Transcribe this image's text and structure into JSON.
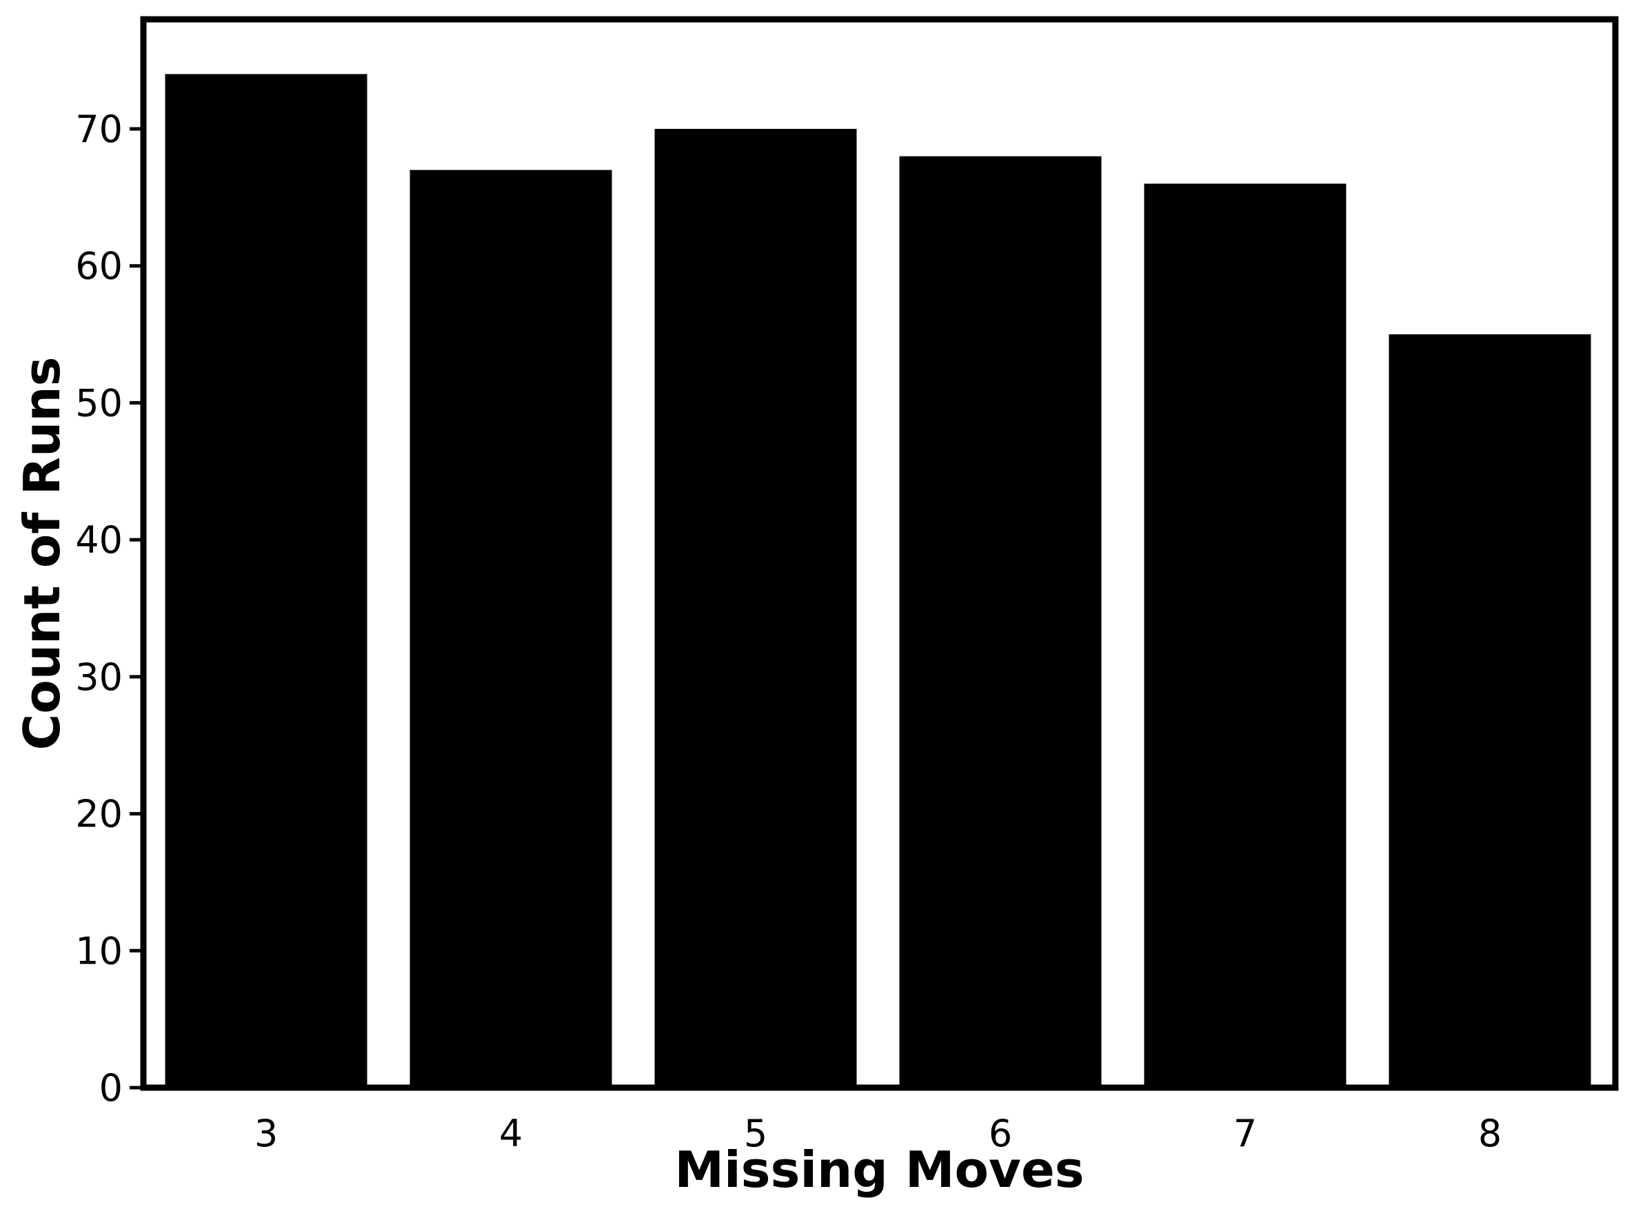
{
  "chart_data": {
    "type": "bar",
    "title": "",
    "xlabel": "Missing Moves",
    "ylabel": "Count of Runs",
    "categories": [
      "3",
      "4",
      "5",
      "6",
      "7",
      "8"
    ],
    "values": [
      74,
      67,
      70,
      68,
      66,
      55
    ],
    "ylim": [
      0,
      78
    ],
    "yticks": [
      0,
      10,
      20,
      30,
      40,
      50,
      60,
      70
    ],
    "grid": false,
    "legend": "none",
    "colors": {
      "bar": "#000000",
      "axes": "#000000",
      "background": "#ffffff"
    }
  }
}
